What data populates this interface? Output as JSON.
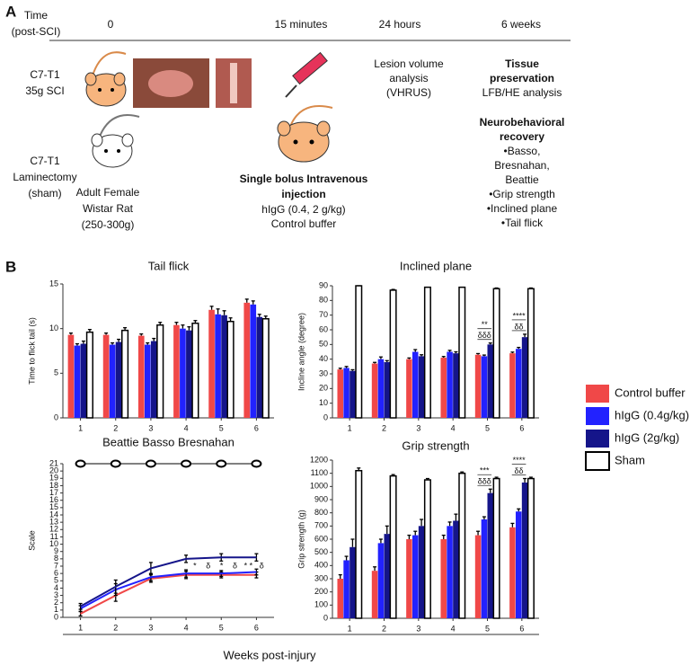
{
  "panel_a": {
    "label": "A",
    "time_label": [
      "Time",
      "(post-SCI)"
    ],
    "timepoints": [
      "0",
      "15 minutes",
      "24 hours",
      "6 weeks"
    ],
    "groups": [
      [
        "C7-T1",
        "35g SCI"
      ],
      [
        "C7-T1",
        "Laminectomy",
        "(sham)"
      ]
    ],
    "animal": [
      "Adult Female",
      "Wistar Rat",
      "(250-300g)"
    ],
    "treatment_title": [
      "Single bolus Intravenous",
      "injection"
    ],
    "treatment": [
      "hIgG  (0.4, 2 g/kg)",
      "Control buffer"
    ],
    "imaging": [
      "Lesion volume",
      "analysis",
      "(VHRUS)"
    ],
    "tissue_title": [
      "Tissue",
      "preservation"
    ],
    "tissue": [
      "LFB/HE analysis"
    ],
    "behavior_title": [
      "Neurobehavioral",
      "recovery"
    ],
    "behavior": [
      "•Basso,",
      "Bresnahan,",
      "Beattie",
      "•Grip strength",
      "•Inclined plane",
      "•Tail flick"
    ]
  },
  "panel_b": {
    "label": "B",
    "xlabel": "Weeks post-injury"
  },
  "chart_data": [
    {
      "type": "bar",
      "title": "Tail flick",
      "ylabel": "Time to flick tail (s)",
      "categories": [
        "1",
        "2",
        "3",
        "4",
        "5",
        "6"
      ],
      "ylim": [
        0,
        15
      ],
      "yticks": [
        0,
        5,
        10,
        15
      ],
      "series": [
        {
          "name": "Control buffer",
          "color": "#f04848",
          "values": [
            9.3,
            9.3,
            9.2,
            10.4,
            12.1,
            12.9
          ],
          "errors": [
            0.2,
            0.2,
            0.2,
            0.3,
            0.4,
            0.4
          ]
        },
        {
          "name": "hIgG (0.4g/kg)",
          "color": "#2222ff",
          "values": [
            8.1,
            8.2,
            8.2,
            10.0,
            11.6,
            12.7
          ],
          "errors": [
            0.2,
            0.2,
            0.2,
            0.4,
            0.6,
            0.4
          ]
        },
        {
          "name": "hIgG (2g/kg)",
          "color": "#15158a",
          "values": [
            8.3,
            8.5,
            8.6,
            9.8,
            11.5,
            11.3
          ],
          "errors": [
            0.3,
            0.3,
            0.3,
            0.4,
            0.5,
            0.3
          ]
        },
        {
          "name": "Sham",
          "color": "#ffffff",
          "values": [
            9.6,
            9.8,
            10.4,
            10.6,
            10.8,
            11.1
          ],
          "errors": [
            0.3,
            0.3,
            0.3,
            0.3,
            0.4,
            0.3
          ]
        }
      ],
      "annotations": []
    },
    {
      "type": "bar",
      "title": "Inclined plane",
      "ylabel": "Incline angle (degree)",
      "categories": [
        "1",
        "2",
        "3",
        "4",
        "5",
        "6"
      ],
      "ylim": [
        0,
        90
      ],
      "yticks": [
        0,
        10,
        20,
        30,
        40,
        50,
        60,
        70,
        80,
        90
      ],
      "series": [
        {
          "name": "Control buffer",
          "color": "#f04848",
          "values": [
            33,
            37,
            40,
            41,
            43,
            44
          ],
          "errors": [
            0.8,
            0.8,
            0.8,
            0.8,
            0.8,
            0.8
          ]
        },
        {
          "name": "hIgG (0.4g/kg)",
          "color": "#2222ff",
          "values": [
            34,
            40,
            45,
            45,
            42,
            47
          ],
          "errors": [
            1,
            1.5,
            1.5,
            1,
            0.8,
            1
          ]
        },
        {
          "name": "hIgG (2g/kg)",
          "color": "#15158a",
          "values": [
            32,
            38,
            42,
            44,
            50,
            55
          ],
          "errors": [
            0.8,
            1,
            1,
            1,
            1,
            2
          ]
        },
        {
          "name": "Sham",
          "color": "#ffffff",
          "values": [
            90,
            87,
            89,
            89,
            88,
            88
          ],
          "errors": [
            0,
            0.5,
            0,
            0,
            0.5,
            0.5
          ]
        }
      ],
      "annotations": [
        "**",
        "δδδ",
        "****",
        "δδ"
      ]
    },
    {
      "type": "line",
      "title": "Beattie Basso Bresnahan",
      "ylabel": "Scale",
      "categories": [
        "1",
        "2",
        "3",
        "4",
        "5",
        "6"
      ],
      "ylim": [
        0,
        21
      ],
      "yticks": [
        0,
        1,
        2,
        3,
        4,
        5,
        6,
        7,
        8,
        9,
        10,
        11,
        12,
        13,
        14,
        15,
        16,
        17,
        18,
        19,
        20,
        21
      ],
      "series": [
        {
          "name": "Control buffer",
          "color": "#f04848",
          "values": [
            0.5,
            3,
            5.3,
            5.8,
            5.8,
            5.8
          ],
          "errors": [
            0.3,
            0.8,
            0.5,
            0.5,
            0.4,
            0.4
          ]
        },
        {
          "name": "hIgG (0.4g/kg)",
          "color": "#2222ff",
          "values": [
            1.2,
            3.8,
            5.5,
            6,
            6,
            6.2
          ],
          "errors": [
            0.4,
            0.8,
            0.5,
            0.5,
            0.4,
            0.4
          ]
        },
        {
          "name": "hIgG (2g/kg)",
          "color": "#15158a",
          "values": [
            1.5,
            4.2,
            6.7,
            8,
            8.2,
            8.2
          ],
          "errors": [
            0.4,
            0.9,
            0.8,
            0.5,
            0.5,
            0.5
          ]
        },
        {
          "name": "Sham",
          "color": "#ffffff",
          "values": [
            21,
            21,
            21,
            21,
            21,
            21
          ],
          "errors": [
            0,
            0,
            0,
            0,
            0,
            0
          ]
        }
      ],
      "annotations": [
        "*",
        "δ",
        "*",
        "δ",
        "* *",
        "δ"
      ]
    },
    {
      "type": "bar",
      "title": "Grip strength",
      "ylabel": "Grip strength (g)",
      "categories": [
        "1",
        "2",
        "3",
        "4",
        "5",
        "6"
      ],
      "ylim": [
        0,
        1200
      ],
      "yticks": [
        0,
        100,
        200,
        300,
        400,
        500,
        600,
        700,
        800,
        900,
        1000,
        1100,
        1200
      ],
      "series": [
        {
          "name": "Control buffer",
          "color": "#f04848",
          "values": [
            300,
            360,
            600,
            600,
            630,
            690
          ],
          "errors": [
            30,
            30,
            30,
            30,
            30,
            30
          ]
        },
        {
          "name": "hIgG (0.4g/kg)",
          "color": "#2222ff",
          "values": [
            440,
            570,
            630,
            700,
            750,
            810
          ],
          "errors": [
            30,
            30,
            30,
            30,
            20,
            20
          ]
        },
        {
          "name": "hIgG (2g/kg)",
          "color": "#15158a",
          "values": [
            540,
            640,
            700,
            740,
            950,
            1030
          ],
          "errors": [
            60,
            60,
            50,
            50,
            30,
            30
          ]
        },
        {
          "name": "Sham",
          "color": "#ffffff",
          "values": [
            1120,
            1080,
            1050,
            1100,
            1060,
            1060
          ],
          "errors": [
            20,
            10,
            10,
            10,
            10,
            10
          ]
        }
      ],
      "annotations": [
        "***",
        "δδδ",
        "****",
        "δδ"
      ]
    }
  ]
}
